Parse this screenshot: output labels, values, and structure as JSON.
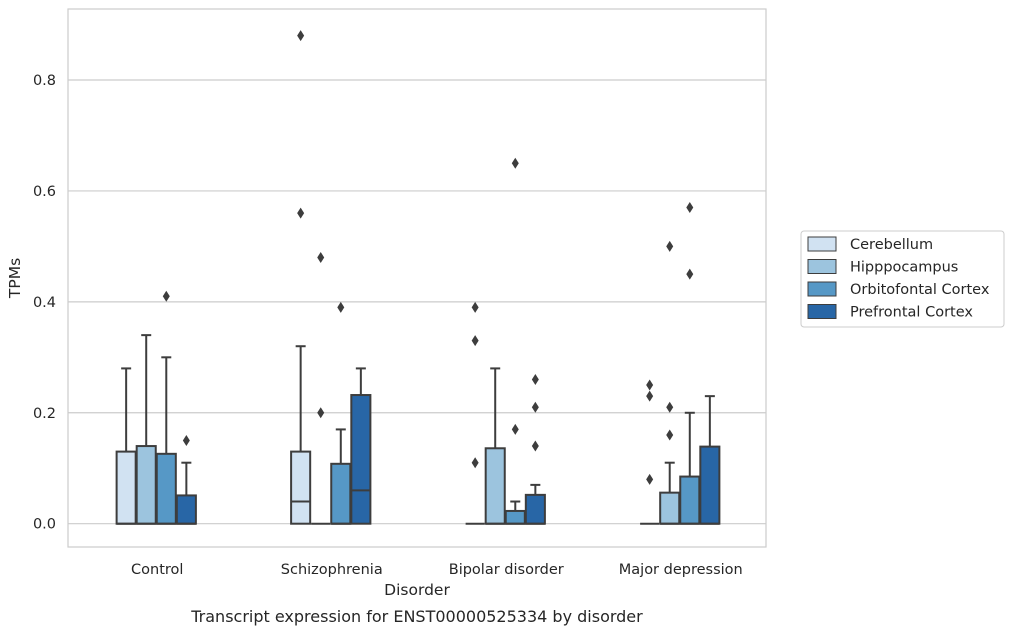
{
  "chart_data": {
    "type": "box",
    "title": "",
    "caption": "Transcript expression for ENST00000525334 by disorder",
    "xlabel": "Disorder",
    "ylabel": "TPMs",
    "ylim": [
      -0.042,
      0.928
    ],
    "yticks": [
      0.0,
      0.2,
      0.4,
      0.6,
      0.8
    ],
    "ytick_labels": [
      "0.0",
      "0.2",
      "0.4",
      "0.6",
      "0.8"
    ],
    "grid": "horizontal",
    "legend_position": "right",
    "categories": [
      "Control",
      "Schizophrenia",
      "Bipolar disorder",
      "Major depression"
    ],
    "series": [
      {
        "name": "Cerebellum",
        "color": "#d1e2f2",
        "boxes": [
          {
            "q1": 0.0,
            "median": 0.0,
            "q3": 0.13,
            "whisker_low": 0.0,
            "whisker_high": 0.28,
            "outliers": []
          },
          {
            "q1": 0.0,
            "median": 0.04,
            "q3": 0.13,
            "whisker_low": 0.0,
            "whisker_high": 0.32,
            "outliers": [
              0.56,
              0.88
            ]
          },
          {
            "q1": 0.0,
            "median": 0.0,
            "q3": 0.0,
            "whisker_low": 0.0,
            "whisker_high": 0.0,
            "outliers": [
              0.11,
              0.33,
              0.39
            ]
          },
          {
            "q1": 0.0,
            "median": 0.0,
            "q3": 0.0,
            "whisker_low": 0.0,
            "whisker_high": 0.0,
            "outliers": [
              0.08,
              0.23,
              0.25
            ]
          }
        ]
      },
      {
        "name": "Hipppocampus",
        "color": "#9cc4de",
        "boxes": [
          {
            "q1": 0.0,
            "median": 0.0,
            "q3": 0.14,
            "whisker_low": 0.0,
            "whisker_high": 0.34,
            "outliers": []
          },
          {
            "q1": 0.0,
            "median": 0.0,
            "q3": 0.0,
            "whisker_low": 0.0,
            "whisker_high": 0.0,
            "outliers": [
              0.2,
              0.48
            ]
          },
          {
            "q1": 0.0,
            "median": 0.0,
            "q3": 0.136,
            "whisker_low": 0.0,
            "whisker_high": 0.28,
            "outliers": []
          },
          {
            "q1": 0.0,
            "median": 0.0,
            "q3": 0.056,
            "whisker_low": 0.0,
            "whisker_high": 0.11,
            "outliers": [
              0.16,
              0.21,
              0.5
            ]
          }
        ]
      },
      {
        "name": "Orbitofontal Cortex",
        "color": "#5698c6",
        "boxes": [
          {
            "q1": 0.0,
            "median": 0.0,
            "q3": 0.126,
            "whisker_low": 0.0,
            "whisker_high": 0.3,
            "outliers": [
              0.41
            ]
          },
          {
            "q1": 0.0,
            "median": 0.0,
            "q3": 0.108,
            "whisker_low": 0.0,
            "whisker_high": 0.17,
            "outliers": [
              0.39
            ]
          },
          {
            "q1": 0.0,
            "median": 0.0,
            "q3": 0.023,
            "whisker_low": 0.0,
            "whisker_high": 0.04,
            "outliers": [
              0.17,
              0.65
            ]
          },
          {
            "q1": 0.0,
            "median": 0.0,
            "q3": 0.085,
            "whisker_low": 0.0,
            "whisker_high": 0.2,
            "outliers": [
              0.45,
              0.57
            ]
          }
        ]
      },
      {
        "name": "Prefrontal Cortex",
        "color": "#2866a6",
        "boxes": [
          {
            "q1": 0.0,
            "median": 0.0,
            "q3": 0.051,
            "whisker_low": 0.0,
            "whisker_high": 0.11,
            "outliers": [
              0.15
            ]
          },
          {
            "q1": 0.0,
            "median": 0.06,
            "q3": 0.232,
            "whisker_low": 0.0,
            "whisker_high": 0.28,
            "outliers": []
          },
          {
            "q1": 0.0,
            "median": 0.0,
            "q3": 0.052,
            "whisker_low": 0.0,
            "whisker_high": 0.07,
            "outliers": [
              0.14,
              0.21,
              0.26
            ]
          },
          {
            "q1": 0.0,
            "median": 0.0,
            "q3": 0.139,
            "whisker_low": 0.0,
            "whisker_high": 0.23,
            "outliers": []
          }
        ]
      }
    ]
  },
  "style": {
    "line_color": "#3d3d3d",
    "grid_color": "#cccccc",
    "frame_color": "#cccccc",
    "outlier_color": "#3d3d3d"
  }
}
